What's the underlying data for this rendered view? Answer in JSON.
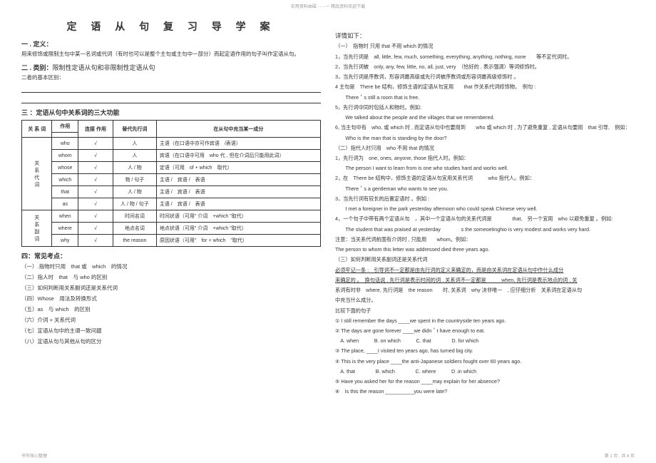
{
  "header_note": "实用资料由磁 - - - 一 精品资料欢迎下载",
  "title": "定 语 从 句 复 习 导 学 案",
  "s1": {
    "h": "一 . 定义：",
    "p": "用来修饰或限制主句中某一名词或代词（有时也可以是整个主句或主句中一部分）而起定语作用的句子叫作定语从句。"
  },
  "s2": {
    "h": "二 . 类别：",
    "t": "限制性定语从句和非限制性定语从句",
    "p": "二者的基本区别："
  },
  "s3": {
    "h": "三 ：定语从句中关系词的三大功能"
  },
  "table": {
    "head": [
      "关\n系\n词",
      "作用",
      "连接\n作用",
      "替代先行词",
      "在从句中充当某一成分"
    ],
    "groups": [
      {
        "label": "关\n系\n代\n词",
        "rows": [
          [
            "who",
            "√",
            "人",
            "主语（在口语中亦可作宾语　/表语）"
          ],
          [
            "whom",
            "√",
            "人",
            "宾语（在口语中可用　who 代 , 但在介词后只能用此词）"
          ],
          [
            "whose",
            "√",
            "人 / 物",
            "定语（可用　of + which　取代）"
          ],
          [
            "which",
            "√",
            "物 / 句子",
            "主语 /　宾语 /　表语"
          ],
          [
            "that",
            "√",
            "人 / 物",
            "主语 /　宾语 /　表语"
          ],
          [
            "as",
            "√",
            "人 / 物 / 句子",
            "主语 /　宾语 /　表语"
          ]
        ]
      },
      {
        "label": "关\n系\n副\n词",
        "rows": [
          [
            "when",
            "√",
            "时间名词",
            "时间状语（可用\" 介词　+which \"取代）"
          ],
          [
            "where",
            "√",
            "地点名词",
            "地点状语（可用\" 介词　+which \"取代）"
          ],
          [
            "why",
            "√",
            "the reason",
            "原因状语（可用\"　for + which　\"取代）"
          ]
        ]
      }
    ]
  },
  "s4": {
    "h": "四：常见考点：",
    "items": [
      "（一）.指物时只用　that 或　which　的情况",
      "（二）指人时　that　与 who 的区别",
      "（三）如何判断用关系副词还是关系代词",
      "（四）Whose　用法及转换形式",
      "（五）as　与 which　的区别",
      "（六）介词 + 关系代词",
      "（七）定语从句中的主谓一致问题",
      "（八）定语从句与其他从句的区分"
    ]
  },
  "right": {
    "h": "详情如下：",
    "sec1": {
      "h": "（一）　指物时 只用 that 不用 which 的情况",
      "lines": [
        "1，当先行词是　all, little, few, much, something, everything, anything, nothing, none　　等不定代词时。",
        "2，当先行词被　only, any, few, little, no, all, just, very　（恰好的 , 表示强调）等词修饰时。",
        "3，当先行词是序数词，形容词最高级或先行词被序数词或形容词最高级修饰时 。",
        "4  主句是　There be 结构，修饰主语的定语从句宜用　　that 作关系代词修饰物。　例句 :",
        "　　There＇s still a room that is free.",
        "5，先行词中同时包括人和物时。例如:",
        "　　We talked about the people and the villages that we remembered.",
        " 6,  当主句中有　who, 或 which 时 ,  而定语从句中也要用到　　who 或 which 时 ,  为了避免重复 ,  定语从句要用　that 引导,　例如：",
        "　　Who is the man that is standing by the door?"
      ]
    },
    "sec2": {
      "h": "（二）指代人时只用　who 不用 that 的情况",
      "lines": [
        "1，先行词为　one, ones, anyone, those 指代人时。例如：",
        "　　The person I want to learn from is one who studies hard and works well.",
        "2，在　There be 结构中，修饰主语的定语从句宜用关系代词　　　who 指代人。例如：",
        "　　There＇s a gentleman who wants to see you.",
        "3，当先行词有较长的后置定语时 。例如 :",
        "　　I met a foreigner in the park yesterday afternoon who could speak Chinese very well.",
        "4，一个句子中带有两个定语从句　，其中一个定语从句的关系代词是　　　　that,　另一个宜用　who 以避免重复 。例如:",
        "　　The student that was praised at yesterday　　　　s the someoetinghio is very modest and works very hard.",
        "注意：当关系代词前面有介词时 , 只能用　　whom。例如：",
        "The person to whom this letter was addressed died three years ago."
      ]
    },
    "sec3": {
      "h": "（三）如何判断用关系副词还是关系代词",
      "p1": "必须牢记一条 :　引导词不一定都是由先行词的定义来确定的，而是由关系词在定语从句中作什么成分",
      "p2": "来确定的 。　换句话说 , 先行词是表示时间的词 , 关系词不一定都是　　　when, 先行词是表示地点的词 ,   关",
      "lines": [
        "系词有时非　where, 先行词是　the reason　　时, 关系词　why 决非唯一　, 应仔细分析　关系词在定语从句",
        "中充当什么成分。",
        "比较下面的句子",
        "① I still remember the days ____we spent in the countryside ten years ago.",
        "② The days are gone forever ____we didn＇t have enough to eat.",
        "　A. when　　　B. on which　　　C. that　　　　D. for which",
        "③ The place, ____I visited ten years ago, has turned big city.",
        "④ This is the very place ____the anti-Japanese soldiers fought over 60 years ago.",
        "　A. that　　　　B. which　　　　C. where　　　D .in which",
        "⑤ Have you asked her for the reason ____may explain for her absence?",
        "⑥　Is this the reason __________you were late?"
      ]
    }
  },
  "footer": {
    "left": "书写核心整理",
    "right": "第 1 页 , 共 4 页"
  }
}
